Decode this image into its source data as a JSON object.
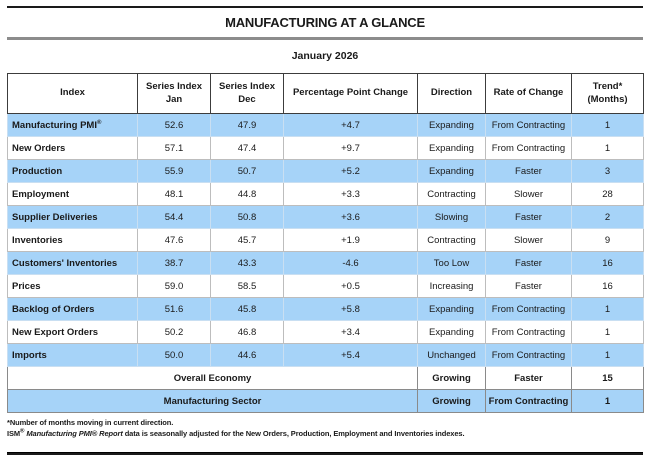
{
  "page": {
    "title": "MANUFACTURING AT A GLANCE",
    "subtitle": "January 2026"
  },
  "colors": {
    "row_blue": "#a6d3f8",
    "row_white": "#ffffff",
    "gray_rule": "#8c8c8c",
    "black_rule": "#1a1a1a"
  },
  "table": {
    "headers": [
      {
        "lines": [
          "Index"
        ]
      },
      {
        "lines": [
          "Series Index",
          "Jan"
        ]
      },
      {
        "lines": [
          "Series Index",
          "Dec"
        ]
      },
      {
        "lines": [
          "Percentage Point Change"
        ]
      },
      {
        "lines": [
          "Direction"
        ]
      },
      {
        "lines": [
          "Rate of Change"
        ]
      },
      {
        "lines": [
          "Trend* (Months)"
        ]
      }
    ],
    "rows": [
      {
        "index": "Manufacturing PMI",
        "index_sup": "®",
        "jan": "52.6",
        "dec": "47.9",
        "change": "+4.7",
        "direction": "Expanding",
        "rate": "From Contracting",
        "trend": "1",
        "shade": "blue"
      },
      {
        "index": "New Orders",
        "jan": "57.1",
        "dec": "47.4",
        "change": "+9.7",
        "direction": "Expanding",
        "rate": "From Contracting",
        "trend": "1",
        "shade": "white"
      },
      {
        "index": "Production",
        "jan": "55.9",
        "dec": "50.7",
        "change": "+5.2",
        "direction": "Expanding",
        "rate": "Faster",
        "trend": "3",
        "shade": "blue"
      },
      {
        "index": "Employment",
        "jan": "48.1",
        "dec": "44.8",
        "change": "+3.3",
        "direction": "Contracting",
        "rate": "Slower",
        "trend": "28",
        "shade": "white"
      },
      {
        "index": "Supplier Deliveries",
        "jan": "54.4",
        "dec": "50.8",
        "change": "+3.6",
        "direction": "Slowing",
        "rate": "Faster",
        "trend": "2",
        "shade": "blue"
      },
      {
        "index": "Inventories",
        "jan": "47.6",
        "dec": "45.7",
        "change": "+1.9",
        "direction": "Contracting",
        "rate": "Slower",
        "trend": "9",
        "shade": "white"
      },
      {
        "index": "Customers' Inventories",
        "jan": "38.7",
        "dec": "43.3",
        "change": "-4.6",
        "direction": "Too Low",
        "rate": "Faster",
        "trend": "16",
        "shade": "blue"
      },
      {
        "index": "Prices",
        "jan": "59.0",
        "dec": "58.5",
        "change": "+0.5",
        "direction": "Increasing",
        "rate": "Faster",
        "trend": "16",
        "shade": "white"
      },
      {
        "index": "Backlog of Orders",
        "jan": "51.6",
        "dec": "45.8",
        "change": "+5.8",
        "direction": "Expanding",
        "rate": "From Contracting",
        "trend": "1",
        "shade": "blue"
      },
      {
        "index": "New Export Orders",
        "jan": "50.2",
        "dec": "46.8",
        "change": "+3.4",
        "direction": "Expanding",
        "rate": "From Contracting",
        "trend": "1",
        "shade": "white"
      },
      {
        "index": "Imports",
        "jan": "50.0",
        "dec": "44.6",
        "change": "+5.4",
        "direction": "Unchanged",
        "rate": "From Contracting",
        "trend": "1",
        "shade": "blue"
      }
    ],
    "summary_rows": [
      {
        "label": "Overall Economy",
        "direction": "Growing",
        "rate": "Faster",
        "trend": "15",
        "shade": "white"
      },
      {
        "label": "Manufacturing Sector",
        "direction": "Growing",
        "rate": "From Contracting",
        "trend": "1",
        "shade": "blue"
      }
    ]
  },
  "footnotes": {
    "line1": "*Number of months moving in current direction.",
    "line2": {
      "org": "ISM",
      "org_sup": "®",
      "italic": "Manufacturing PMI® Report",
      "rest": " data is seasonally adjusted for the New Orders, Production, Employment and Inventories indexes."
    }
  }
}
